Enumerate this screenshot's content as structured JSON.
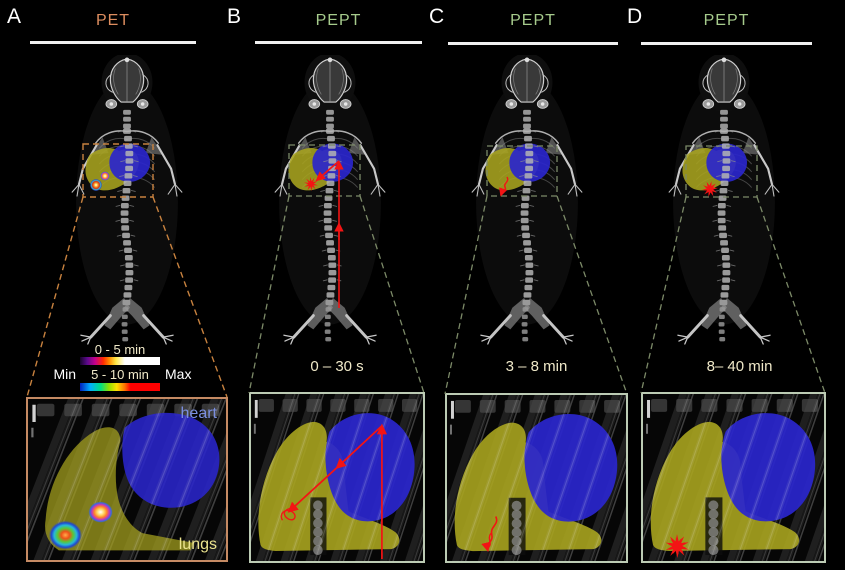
{
  "figure": {
    "panels": [
      {
        "letter": "A",
        "title": "PET",
        "modality": "PET",
        "time_label": ""
      },
      {
        "letter": "B",
        "title": "PEPT",
        "modality": "PEPT",
        "time_label": "0 – 30 s"
      },
      {
        "letter": "C",
        "title": "PEPT",
        "modality": "PEPT",
        "time_label": "3 – 8 min"
      },
      {
        "letter": "D",
        "title": "PEPT",
        "modality": "PEPT",
        "time_label": "8– 40 min"
      }
    ],
    "legend": {
      "bar1_label": "0 - 5 min",
      "bar2_label": "5 - 10 min",
      "min_label": "Min",
      "max_label": "Max"
    },
    "inset_labels": {
      "heart": "heart",
      "lungs": "lungs"
    },
    "colors": {
      "heart_overlay": "#2a26cc",
      "lungs_overlay": "#a8a41f",
      "trace_red": "#f31414",
      "pet_accent": "#dd8d5f",
      "pept_accent": "#a6cb8c",
      "time_text": "#f0e9c9",
      "inset_border_pet": "#c58a63",
      "inset_border_pept": "#bccbb4",
      "dash_pet": "#c8823f",
      "dash_pept": "#7c8a68"
    }
  }
}
